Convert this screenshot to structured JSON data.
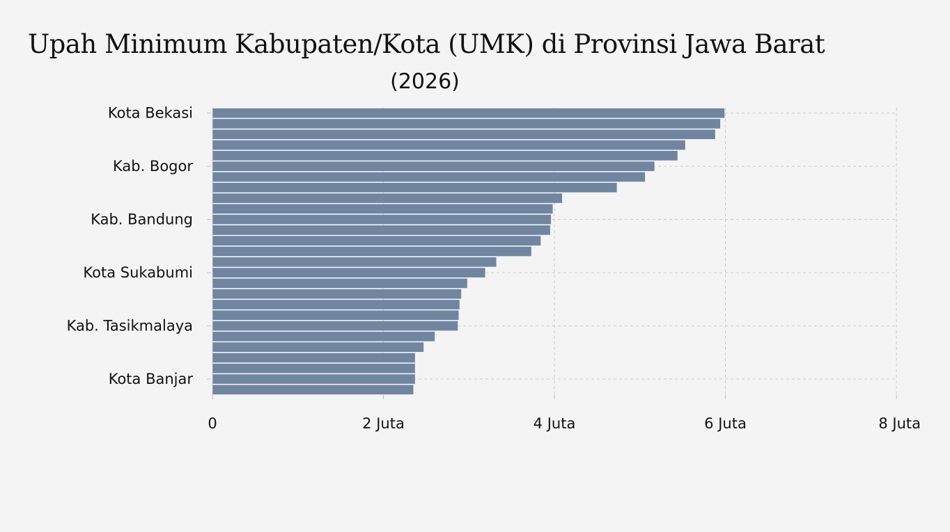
{
  "chart_data": {
    "type": "bar",
    "orientation": "horizontal",
    "title": "Upah Minimum Kabupaten/Kota (UMK) di Provinsi Jawa Barat",
    "subtitle": "(2026)",
    "xlabel": "",
    "ylabel": "",
    "xlim": [
      0,
      8000000
    ],
    "x_ticks": [
      {
        "value": 0,
        "label": "0"
      },
      {
        "value": 2000000,
        "label": "2 Juta"
      },
      {
        "value": 4000000,
        "label": "4 Juta"
      },
      {
        "value": 6000000,
        "label": "6 Juta"
      },
      {
        "value": 8000000,
        "label": "8 Juta"
      }
    ],
    "y_tick_labels": [
      {
        "index": 0,
        "label": "Kota Bekasi"
      },
      {
        "index": 5,
        "label": "Kab. Bogor"
      },
      {
        "index": 10,
        "label": "Kab. Bandung"
      },
      {
        "index": 15,
        "label": "Kota Sukabumi"
      },
      {
        "index": 20,
        "label": "Kab. Tasikmalaya"
      },
      {
        "index": 25,
        "label": "Kota Banjar"
      }
    ],
    "values": [
      5990000,
      5940000,
      5880000,
      5530000,
      5440000,
      5170000,
      5060000,
      4730000,
      4090000,
      3980000,
      3960000,
      3950000,
      3840000,
      3730000,
      3320000,
      3190000,
      2980000,
      2910000,
      2890000,
      2880000,
      2870000,
      2600000,
      2470000,
      2370000,
      2370000,
      2370000,
      2350000
    ],
    "bar_color": "#7085a0",
    "grid": true
  }
}
